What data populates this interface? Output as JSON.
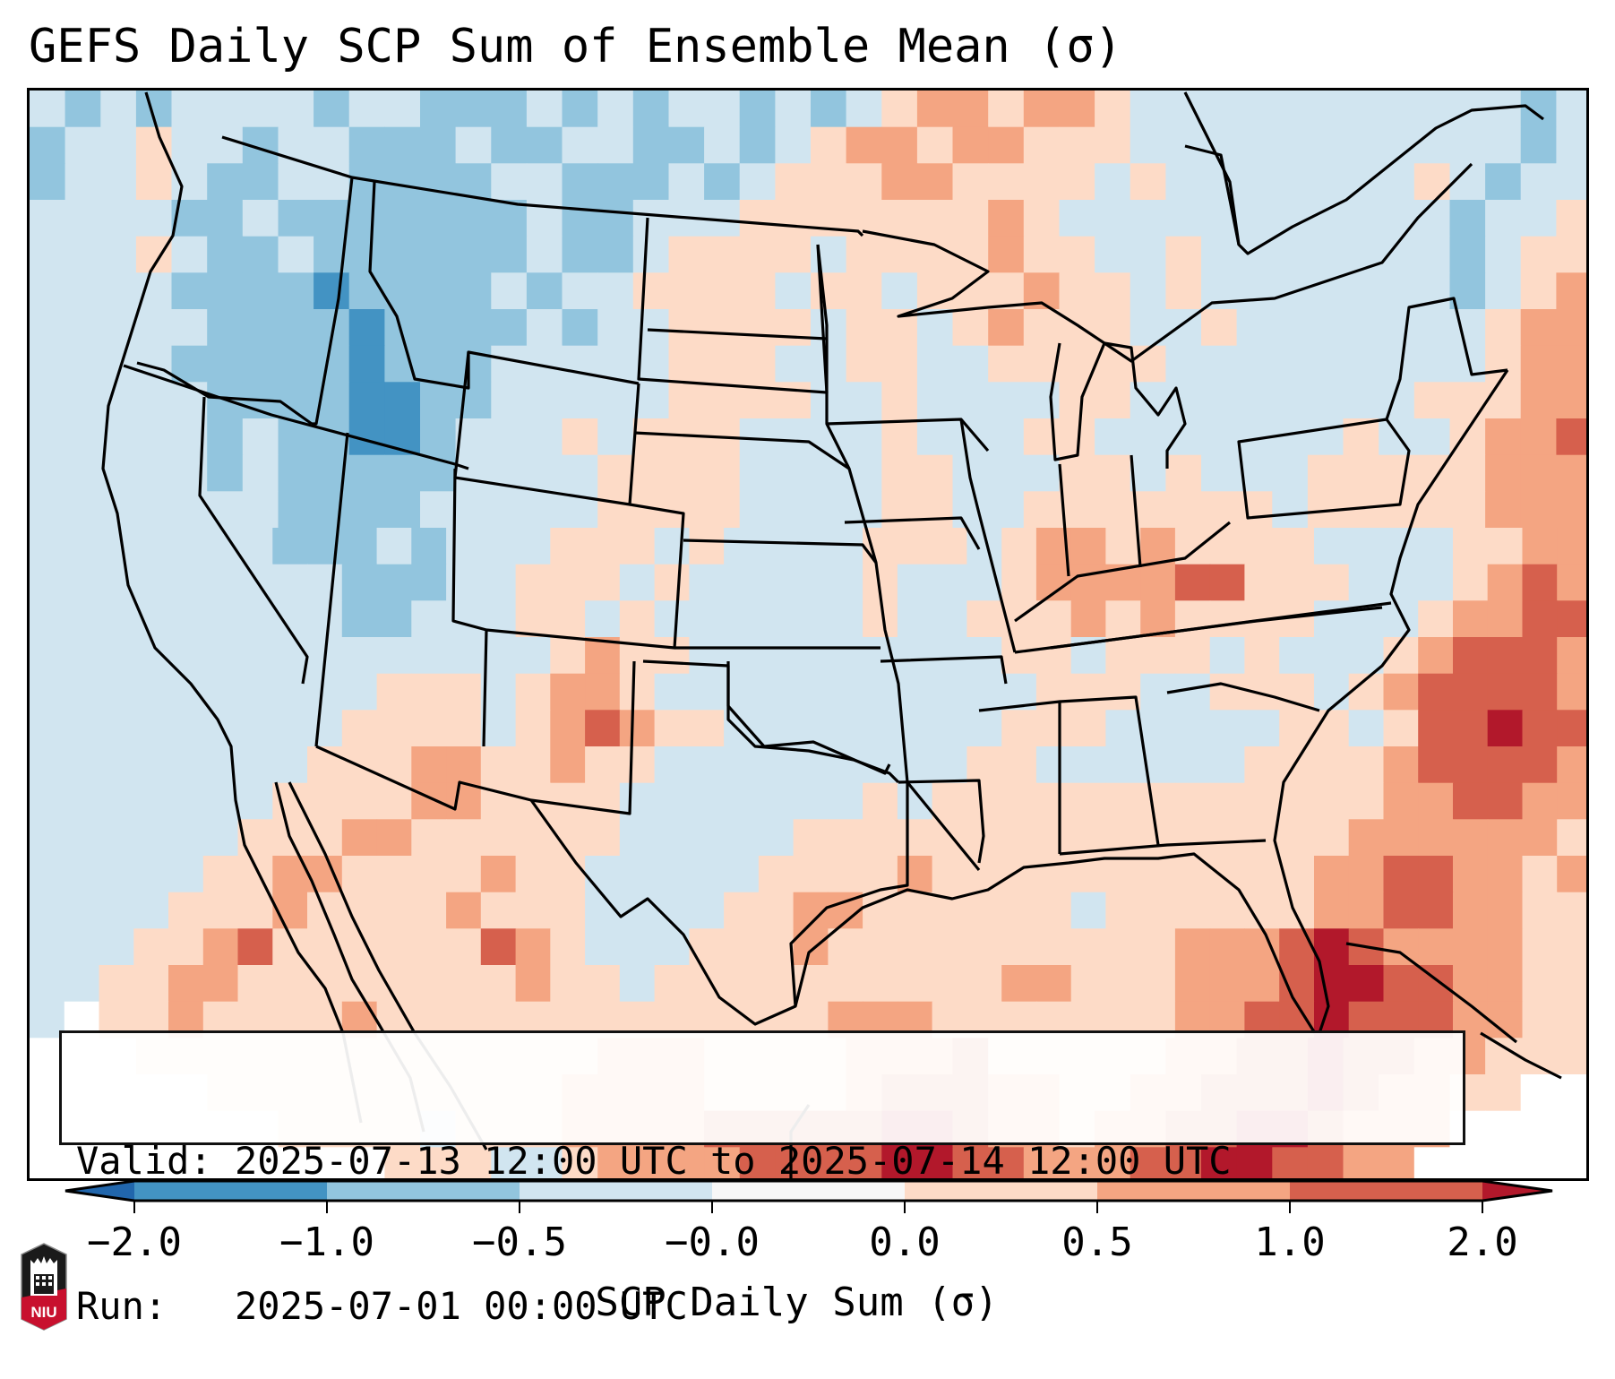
{
  "title": "GEFS Daily SCP Sum of Ensemble Mean (σ)",
  "info": {
    "valid_line": "Valid: 2025-07-13 12:00 UTC to 2025-07-14 12:00 UTC",
    "run_line": "Run:   2025-07-01 00:00 UTC"
  },
  "colorbar": {
    "label": "SCP Daily Sum (σ)",
    "ticks": [
      "−2.0",
      "−1.0",
      "−0.5",
      "−0.0",
      "0.0",
      "0.5",
      "1.0",
      "2.0"
    ],
    "bins": [
      {
        "range": "< -2.0",
        "color": "#2166ac",
        "extend": "min"
      },
      {
        "range": "-2.0 to -1.0",
        "color": "#4393c3"
      },
      {
        "range": "-1.0 to -0.5",
        "color": "#92c5de"
      },
      {
        "range": "-0.5 to -0.0",
        "color": "#d1e5f0"
      },
      {
        "range": "-0.0 to 0.0",
        "color": "#f7f7f7"
      },
      {
        "range": "0.0 to 0.5",
        "color": "#fddbc7"
      },
      {
        "range": "0.5 to 1.0",
        "color": "#f4a582"
      },
      {
        "range": "1.0 to 2.0",
        "color": "#d6604d"
      },
      {
        "range": "> 2.0",
        "color": "#b2182b",
        "extend": "max"
      }
    ]
  },
  "logo": {
    "text": "NIU"
  },
  "chart_data": {
    "type": "heatmap",
    "title": "GEFS Daily SCP Sum of Ensemble Mean (σ)",
    "colorbar_label": "SCP Daily Sum (σ)",
    "levels": [
      -2.0,
      -1.0,
      -0.5,
      -0.0,
      0.0,
      0.5,
      1.0,
      2.0
    ],
    "region": "Contiguous United States, southern Canada, northern Mexico, Gulf of Mexico, western Atlantic",
    "category_key": {
      "a": "-2.0 to -1.0",
      "b": "-1.0 to -0.5",
      "c": "-0.5 to -0.0",
      "w": "-0.0 to 0.0",
      "d": "0.0 to 0.5",
      "e": "0.5 to 1.0",
      "f": "1.0 to 2.0",
      "g": "> 2.0",
      "x": "no data"
    },
    "grid_rows_north_to_south": [
      "cbcbccccbccbbbcbcbccbcbcdeedeedcccccccccccbc",
      "bccdccbccbbbcbbccbbcbcdeedeedddcccccccccccbc",
      "bccdcbbccbbbbccbbbcbcdddeeddddcdcccccccdcbcc",
      "ccccbbcbbbbbbbcbbcccdddddddedcccccccccccbccd",
      "cccdcbbcbbbbbbcbbcddddcddddeddccdcccccccbcdd",
      "ccccbbbbabbbbcbccddddcddcdddeddcdcccccccbcde",
      "cccccbbbbabbbbcbccddddcddcdedddccdcccccccdee",
      "ccccbbbbbabbbcccccdddccddccdddddcccccccccdee",
      "cccccbbbbaabbcccccddddccdccccddccccccccdddee",
      "cccccbcbbaabcccdcdddccccdcccddcccccccdccdeef",
      "cccccbcbbbbbccccddddccccddcccddcdcccdddddeee",
      "cccccccbbbbcccccddddccccddccdddddddcdddddeee",
      "cccccccbbbcbcccdddcdccccdddcdeededdddccccddee",
      "cccccccccbbbccdddcdcccccdcccdeeeeffdddcccdefe",
      "cccccccccbbcccddcdccccccdccdddededdddcccdeeff",
      "cccccccccccccccdeddcccccccccddcdddcdcccdefffe",
      "ccccccccccdddcdeedcccccccccccdddccdddcdeffffe",
      "cccccccccddddcdefeddccccccccdddcccccddcdffgff",
      "ccccccccdddeeddeddcccccccccddccccccddddeffffe",
      "cccccccddddeeddddcccccccdcdddddddddddddeeffee",
      "ccccccdddeeddddddcccccddddddddddddddddeeeeeed",
      "cccccddeeddddeddcccccddddedddddddddddeeffeede",
      "ccccdddeddddedddccccddeeddddddcddddddeeffeedd",
      "cccddefddddddfedcccdddeddddddddddeeefgfeeeedd",
      "ccddeeddddddddeddcddddddddddeedddeeefggffeedd",
      "cxddeddddedddddddddddddeeedddddddeeffgfffeedd",
      "xxxdddddddddddddeeeddddeeefdddddeeffgffeeddd",
      "xxxxxddddddddddeeeeddddefffeeddeefffgfeeddxx",
      "xxxxxxxddddcdddeeeefffffggfeedeeffggfeeexxxx",
      "xxxxxxxxxxdddccdeeeeffffggffeeeffggffeexxxxx"
    ],
    "notable_features": [
      "Negative anomalies (blue, -1.0 to -0.5) across Idaho, Montana, Oregon and Washington",
      "Positive anomalies (0.5 to 2.0) over Ohio Valley, West Virginia and the western Atlantic",
      "Maxima (> 2.0) near southern Florida / Bahamas and the western Atlantic east of Carolinas"
    ]
  }
}
